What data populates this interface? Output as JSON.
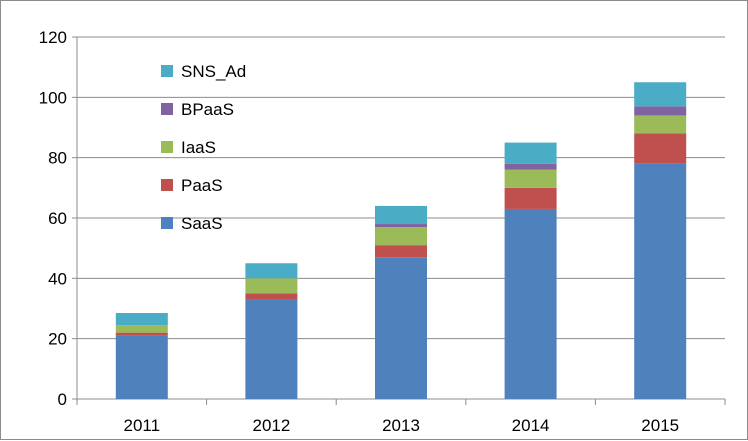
{
  "chart_data": {
    "type": "bar",
    "stacked": true,
    "title": "",
    "xlabel": "",
    "ylabel": "",
    "categories": [
      "2011",
      "2012",
      "2013",
      "2014",
      "2015"
    ],
    "ylim": [
      0,
      120
    ],
    "yticks": [
      0,
      20,
      40,
      60,
      80,
      100,
      120
    ],
    "grid": true,
    "legend_position": "top-left",
    "series": [
      {
        "name": "SaaS",
        "color": "#4F81BD",
        "values": [
          21,
          33,
          47,
          63,
          78
        ]
      },
      {
        "name": "PaaS",
        "color": "#C0504D",
        "values": [
          1,
          2,
          4,
          7,
          10
        ]
      },
      {
        "name": "IaaS",
        "color": "#9BBB59",
        "values": [
          2.5,
          5,
          6,
          6,
          6
        ]
      },
      {
        "name": "BPaaS",
        "color": "#8064A2",
        "values": [
          0,
          0,
          1,
          2,
          3
        ]
      },
      {
        "name": "SNS_Ad",
        "color": "#4BACC6",
        "values": [
          4,
          5,
          6,
          7,
          8
        ]
      }
    ]
  }
}
